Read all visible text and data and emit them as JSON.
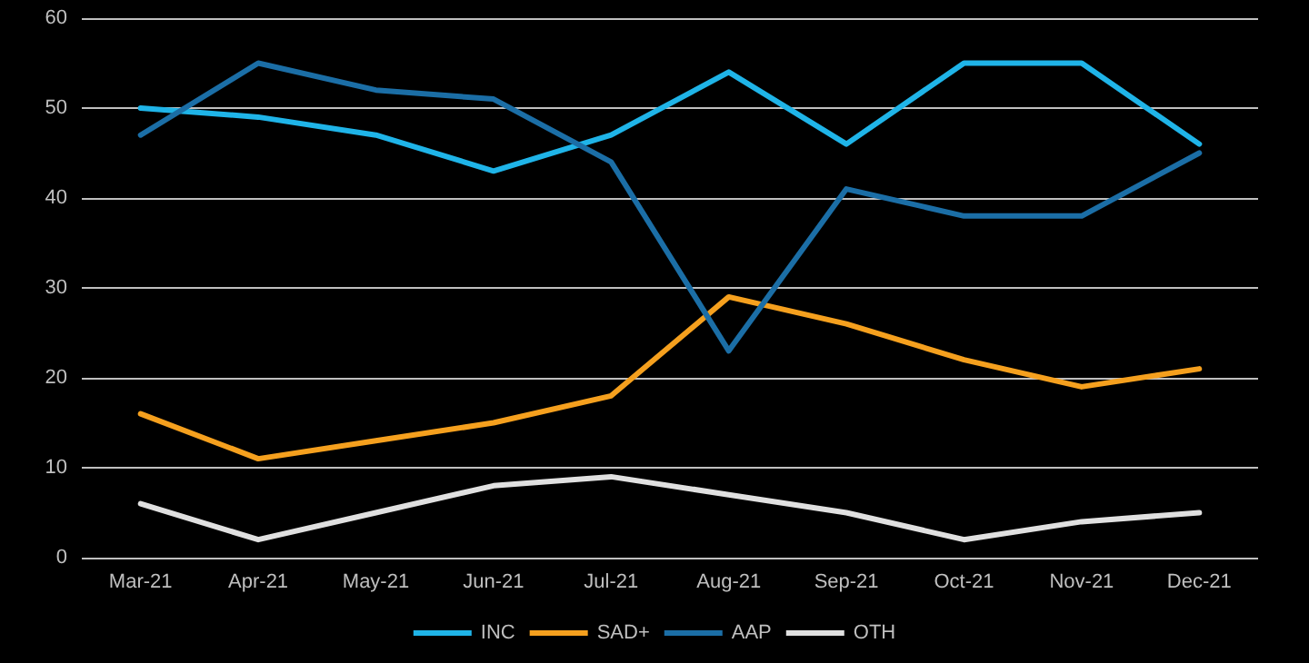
{
  "chart_data": {
    "type": "line",
    "categories": [
      "Mar-21",
      "Apr-21",
      "May-21",
      "Jun-21",
      "Jul-21",
      "Aug-21",
      "Sep-21",
      "Oct-21",
      "Nov-21",
      "Dec-21"
    ],
    "series": [
      {
        "name": "INC",
        "color": "#1fb4e8",
        "values": [
          50,
          49,
          47,
          43,
          47,
          54,
          46,
          55,
          55,
          46
        ]
      },
      {
        "name": "SAD+",
        "color": "#f5a01e",
        "values": [
          16,
          11,
          13,
          15,
          18,
          29,
          26,
          22,
          19,
          21
        ]
      },
      {
        "name": "AAP",
        "color": "#1b6ea6",
        "values": [
          47,
          55,
          52,
          51,
          44,
          23,
          41,
          38,
          38,
          45
        ]
      },
      {
        "name": "OTH",
        "color": "#e0e0e0",
        "values": [
          6,
          2,
          5,
          8,
          9,
          7,
          5,
          2,
          4,
          5
        ]
      }
    ],
    "ylim": [
      0,
      60
    ],
    "yticks": [
      0,
      10,
      20,
      30,
      40,
      50,
      60
    ],
    "grid": "y",
    "legend": "bottom",
    "marker": "none",
    "line_style": "solid"
  }
}
